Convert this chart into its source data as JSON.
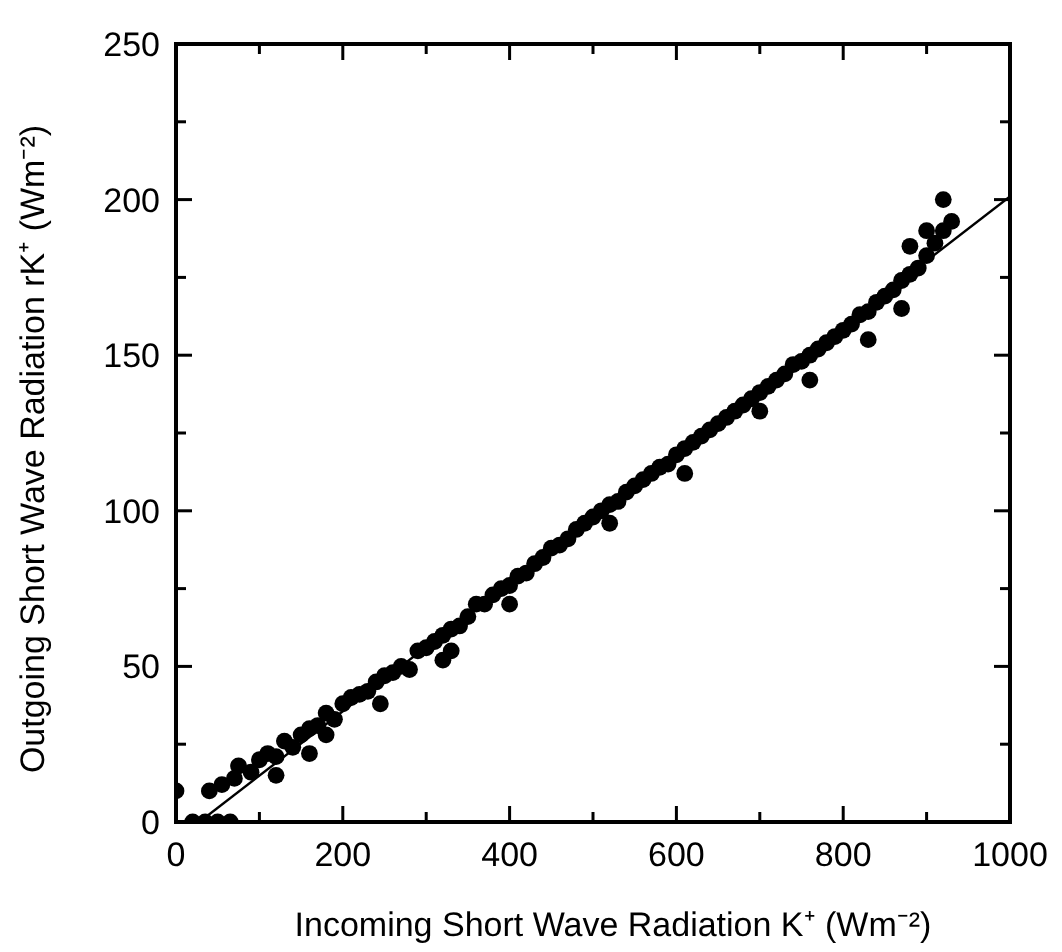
{
  "chart_data": {
    "type": "scatter",
    "xlabel": "Incoming Short Wave Radiation K⁺ (Wm⁻²)",
    "ylabel": "Outgoing Short Wave Radiation  rK⁺ (Wm⁻²)",
    "xlim": [
      0,
      1000
    ],
    "ylim": [
      0,
      250
    ],
    "xticks": [
      0,
      {
        "value": 100,
        "label": null
      },
      200,
      {
        "value": 300,
        "label": null
      },
      400,
      {
        "value": 500,
        "label": null
      },
      600,
      {
        "value": 700,
        "label": null
      },
      800,
      {
        "value": 900,
        "label": null
      },
      1000
    ],
    "yticks": [
      0,
      {
        "value": 25,
        "label": null
      },
      50,
      {
        "value": 75,
        "label": null
      },
      100,
      {
        "value": 125,
        "label": null
      },
      150,
      {
        "value": 175,
        "label": null
      },
      200,
      {
        "value": 225,
        "label": null
      },
      250
    ],
    "grid": false,
    "series": [
      {
        "color": "#000000",
        "marker": "circle",
        "x": [
          0,
          20,
          35,
          50,
          65,
          40,
          55,
          70,
          75,
          90,
          100,
          110,
          120,
          130,
          140,
          150,
          160,
          170,
          180,
          190,
          200,
          210,
          220,
          230,
          240,
          250,
          260,
          270,
          280,
          290,
          300,
          310,
          320,
          330,
          340,
          350,
          360,
          370,
          380,
          390,
          400,
          410,
          420,
          430,
          440,
          450,
          460,
          470,
          480,
          490,
          500,
          510,
          520,
          530,
          540,
          550,
          560,
          570,
          580,
          590,
          600,
          610,
          620,
          630,
          640,
          650,
          660,
          670,
          680,
          690,
          700,
          710,
          720,
          730,
          740,
          750,
          760,
          770,
          780,
          790,
          800,
          810,
          820,
          830,
          840,
          850,
          860,
          870,
          880,
          890,
          900,
          910,
          920,
          930,
          245,
          330,
          400,
          520,
          610,
          700,
          830,
          870,
          900,
          920,
          880,
          180,
          160,
          120,
          320,
          760
        ],
        "values": [
          10,
          0,
          0,
          0,
          0,
          10,
          12,
          14,
          18,
          16,
          20,
          22,
          21,
          26,
          24,
          28,
          30,
          31,
          35,
          33,
          38,
          40,
          41,
          42,
          45,
          47,
          48,
          50,
          49,
          55,
          56,
          58,
          60,
          62,
          63,
          66,
          70,
          70,
          73,
          75,
          76,
          79,
          80,
          83,
          85,
          88,
          89,
          91,
          94,
          96,
          98,
          100,
          102,
          103,
          106,
          108,
          110,
          112,
          114,
          115,
          118,
          120,
          122,
          124,
          126,
          128,
          130,
          132,
          134,
          136,
          138,
          140,
          142,
          144,
          147,
          148,
          150,
          152,
          154,
          156,
          158,
          160,
          163,
          164,
          167,
          169,
          171,
          174,
          176,
          178,
          182,
          186,
          190,
          193,
          38,
          55,
          70,
          96,
          112,
          132,
          155,
          165,
          190,
          200,
          185,
          28,
          22,
          15,
          52,
          142
        ]
      },
      {
        "type": "line",
        "color": "#000000",
        "marker": "none",
        "line_style": "solid",
        "x": [
          28,
          1000
        ],
        "values": [
          0,
          201
        ]
      }
    ]
  }
}
